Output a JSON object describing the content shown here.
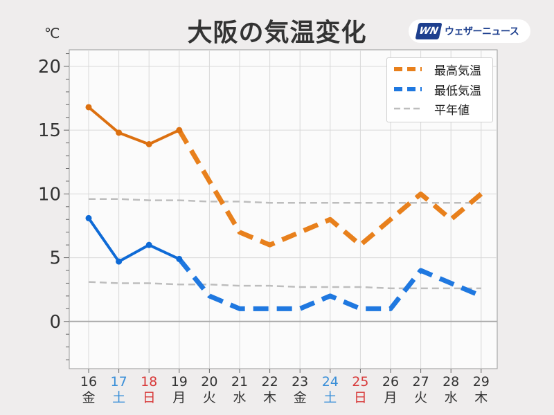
{
  "header": {
    "title": "大阪の気温変化",
    "unit": "℃",
    "logo_mark": "WN",
    "logo_text": "ウェザーニュース"
  },
  "colors": {
    "high": "#e8801c",
    "high_dark": "#dc7010",
    "low": "#1f78e0",
    "low_dark": "#0e6ad6",
    "normal": "#bdbdbd",
    "saturday": "#3a8fd8",
    "sunday": "#d83a3a"
  },
  "legend": {
    "items": [
      {
        "label": "最高気温",
        "color": "#e8801c",
        "style": "dashed-bold"
      },
      {
        "label": "最低気温",
        "color": "#1f78e0",
        "style": "dashed-bold"
      },
      {
        "label": "平年値",
        "color": "#bdbdbd",
        "style": "dashed-thin"
      }
    ],
    "placement": "top-right"
  },
  "chart_data": {
    "type": "line",
    "title": "大阪の気温変化",
    "ylabel": "℃",
    "ylim": [
      -3.7,
      21.3
    ],
    "yticks": [
      0,
      5,
      10,
      15,
      20
    ],
    "grid": true,
    "categories": [
      "16",
      "17",
      "18",
      "19",
      "20",
      "21",
      "22",
      "23",
      "24",
      "25",
      "26",
      "27",
      "28",
      "29"
    ],
    "weekdays": [
      "金",
      "土",
      "日",
      "月",
      "火",
      "水",
      "木",
      "金",
      "土",
      "日",
      "月",
      "火",
      "水",
      "木"
    ],
    "day_types": [
      "weekday",
      "sat",
      "sun",
      "weekday",
      "weekday",
      "weekday",
      "weekday",
      "weekday",
      "sat",
      "sun",
      "weekday",
      "weekday",
      "weekday",
      "weekday"
    ],
    "observed_until_index": 3,
    "series": [
      {
        "name": "最高気温",
        "values": [
          16.8,
          14.8,
          13.9,
          15.0,
          11.0,
          7.0,
          6.0,
          7.0,
          8.0,
          6.0,
          8.0,
          10.0,
          8.0,
          10.0
        ]
      },
      {
        "name": "最低気温",
        "values": [
          8.1,
          4.7,
          6.0,
          4.9,
          2.0,
          1.0,
          1.0,
          1.0,
          2.0,
          1.0,
          1.0,
          4.0,
          3.0,
          2.0
        ]
      },
      {
        "name": "平年値",
        "values": [
          9.6,
          9.6,
          9.5,
          9.5,
          9.4,
          9.4,
          9.3,
          9.3,
          9.3,
          9.3,
          9.3,
          9.3,
          9.3,
          9.3
        ]
      },
      {
        "name": "平年値",
        "values": [
          3.1,
          3.0,
          3.0,
          2.9,
          2.9,
          2.8,
          2.8,
          2.7,
          2.7,
          2.7,
          2.6,
          2.6,
          2.6,
          2.6
        ]
      }
    ]
  }
}
